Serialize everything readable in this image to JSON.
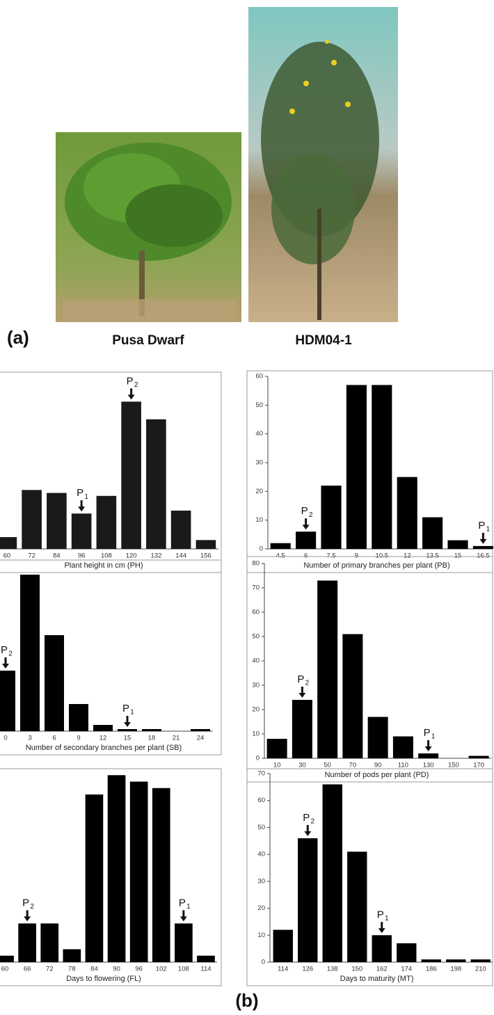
{
  "panel_a": {
    "label": "(a)",
    "photo_captions": [
      "Pusa Dwarf",
      "HDM04-1"
    ]
  },
  "panel_b": {
    "label": "(b)"
  },
  "chart_data": [
    {
      "type": "bar",
      "x_label": "Plant height in cm  (PH)",
      "color": "#1a1a1a",
      "categories": [
        "60",
        "72",
        "84",
        "96",
        "108",
        "120",
        "132",
        "144",
        "156"
      ],
      "values": [
        4,
        20,
        19,
        12,
        18,
        50,
        44,
        13,
        3
      ],
      "ylim": [
        0,
        60
      ],
      "annotations": [
        {
          "text": "P",
          "subscript": "2",
          "category": "120"
        },
        {
          "text": "P",
          "subscript": "1",
          "category": "96"
        }
      ]
    },
    {
      "type": "bar",
      "x_label": "Number of primary branches per plant (PB)",
      "color": "#000000",
      "categories": [
        "4.5",
        "6",
        "7.5",
        "9",
        "10.5",
        "12",
        "13.5",
        "15",
        "16.5"
      ],
      "values": [
        2,
        6,
        22,
        57,
        57,
        25,
        11,
        3,
        1
      ],
      "ylim": [
        0,
        60
      ],
      "yticks": [
        0,
        10,
        20,
        30,
        40,
        50,
        60
      ],
      "annotations": [
        {
          "text": "P",
          "subscript": "2",
          "category": "6"
        },
        {
          "text": "P",
          "subscript": "1",
          "category": "16.5"
        }
      ]
    },
    {
      "type": "bar",
      "x_label": "Number of secondary branches per plant (SB)",
      "color": "#000000",
      "categories": [
        "0",
        "3",
        "6",
        "9",
        "12",
        "15",
        "18",
        "21",
        "24"
      ],
      "values": [
        29,
        75,
        46,
        13,
        3,
        1,
        1,
        0,
        1
      ],
      "ylim": [
        0,
        82
      ],
      "annotations": [
        {
          "text": "P",
          "subscript": "2",
          "category": "0"
        },
        {
          "text": "P",
          "subscript": "1",
          "category": "15"
        }
      ]
    },
    {
      "type": "bar",
      "x_label": "Number of pods per plant (PD)",
      "color": "#000000",
      "categories": [
        "10",
        "30",
        "50",
        "70",
        "90",
        "110",
        "130",
        "150",
        "170"
      ],
      "values": [
        8,
        24,
        73,
        51,
        17,
        9,
        2,
        0,
        1
      ],
      "ylim": [
        0,
        80
      ],
      "yticks": [
        0,
        10,
        20,
        30,
        40,
        50,
        60,
        70,
        80
      ],
      "annotations": [
        {
          "text": "P",
          "subscript": "2",
          "category": "30"
        },
        {
          "text": "P",
          "subscript": "1",
          "category": "130"
        }
      ]
    },
    {
      "type": "bar",
      "x_label": "Days to flowering (FL)",
      "color": "#000000",
      "categories": [
        "60",
        "66",
        "72",
        "78",
        "84",
        "90",
        "96",
        "102",
        "108",
        "114"
      ],
      "values": [
        1,
        6,
        6,
        2,
        26,
        29,
        28,
        27,
        6,
        1
      ],
      "ylim": [
        0,
        30
      ],
      "annotations": [
        {
          "text": "P",
          "subscript": "2",
          "category": "66"
        },
        {
          "text": "P",
          "subscript": "1",
          "category": "108"
        }
      ]
    },
    {
      "type": "bar",
      "x_label": "Days to maturity (MT)",
      "color": "#000000",
      "categories": [
        "114",
        "126",
        "138",
        "150",
        "162",
        "174",
        "186",
        "198",
        "210"
      ],
      "values": [
        12,
        46,
        66,
        41,
        10,
        7,
        1,
        1,
        1
      ],
      "ylim": [
        0,
        70
      ],
      "yticks": [
        0,
        10,
        20,
        30,
        40,
        50,
        60,
        70
      ],
      "annotations": [
        {
          "text": "P",
          "subscript": "2",
          "category": "126"
        },
        {
          "text": "P",
          "subscript": "1",
          "category": "162"
        }
      ]
    }
  ]
}
